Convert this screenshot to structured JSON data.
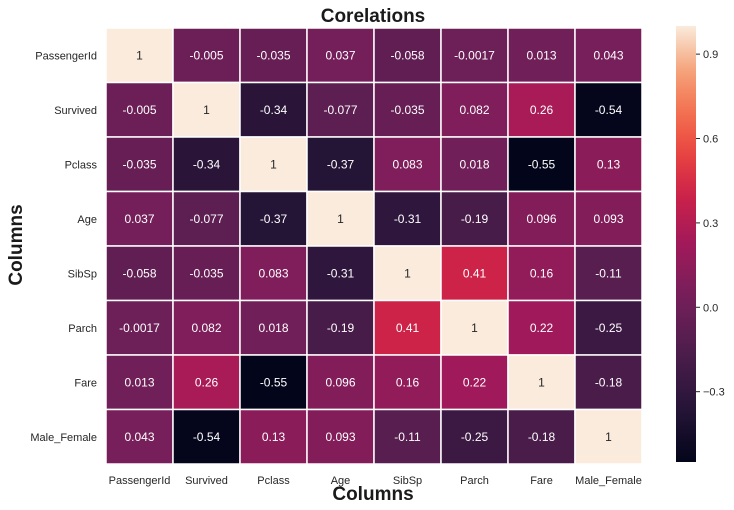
{
  "chart_data": {
    "type": "heatmap",
    "title": "Corelations",
    "xlabel": "Columns",
    "ylabel": "Columns",
    "rows": [
      "PassengerId",
      "Survived",
      "Pclass",
      "Age",
      "SibSp",
      "Parch",
      "Fare",
      "Male_Female"
    ],
    "columns": [
      "PassengerId",
      "Survived",
      "Pclass",
      "Age",
      "SibSp",
      "Parch",
      "Fare",
      "Male_Female"
    ],
    "values": [
      [
        1,
        -0.005,
        -0.035,
        0.037,
        -0.058,
        -0.0017,
        0.013,
        0.043
      ],
      [
        -0.005,
        1,
        -0.34,
        -0.077,
        -0.035,
        0.082,
        0.26,
        -0.54
      ],
      [
        -0.035,
        -0.34,
        1,
        -0.37,
        0.083,
        0.018,
        -0.55,
        0.13
      ],
      [
        0.037,
        -0.077,
        -0.37,
        1,
        -0.31,
        -0.19,
        0.096,
        0.093
      ],
      [
        -0.058,
        -0.035,
        0.083,
        -0.31,
        1,
        0.41,
        0.16,
        -0.11
      ],
      [
        -0.0017,
        0.082,
        0.018,
        -0.19,
        0.41,
        1,
        0.22,
        -0.25
      ],
      [
        0.013,
        0.26,
        -0.55,
        0.096,
        0.16,
        0.22,
        1,
        -0.18
      ],
      [
        0.043,
        -0.54,
        0.13,
        0.093,
        -0.11,
        -0.25,
        -0.18,
        1
      ]
    ],
    "labels": [
      [
        "1",
        "-0.005",
        "-0.035",
        "0.037",
        "-0.058",
        "-0.0017",
        "0.013",
        "0.043"
      ],
      [
        "-0.005",
        "1",
        "-0.34",
        "-0.077",
        "-0.035",
        "0.082",
        "0.26",
        "-0.54"
      ],
      [
        "-0.035",
        "-0.34",
        "1",
        "-0.37",
        "0.083",
        "0.018",
        "-0.55",
        "0.13"
      ],
      [
        "0.037",
        "-0.077",
        "-0.37",
        "1",
        "-0.31",
        "-0.19",
        "0.096",
        "0.093"
      ],
      [
        "-0.058",
        "-0.035",
        "0.083",
        "-0.31",
        "1",
        "0.41",
        "0.16",
        "-0.11"
      ],
      [
        "-0.0017",
        "0.082",
        "0.018",
        "-0.19",
        "0.41",
        "1",
        "0.22",
        "-0.25"
      ],
      [
        "0.013",
        "0.26",
        "-0.55",
        "0.096",
        "0.16",
        "0.22",
        "1",
        "-0.18"
      ],
      [
        "0.043",
        "-0.54",
        "0.13",
        "0.093",
        "-0.11",
        "-0.25",
        "-0.18",
        "1"
      ]
    ],
    "colormap": "rocket",
    "color_range": [
      -0.55,
      1.0
    ],
    "colorbar": {
      "ticks": [
        -0.3,
        0.0,
        0.3,
        0.6,
        0.9
      ],
      "tick_labels": [
        "−0.3",
        "0.0",
        "0.3",
        "0.6",
        "0.9"
      ]
    },
    "grid_lines": "white",
    "legend": "colorbar-right"
  }
}
